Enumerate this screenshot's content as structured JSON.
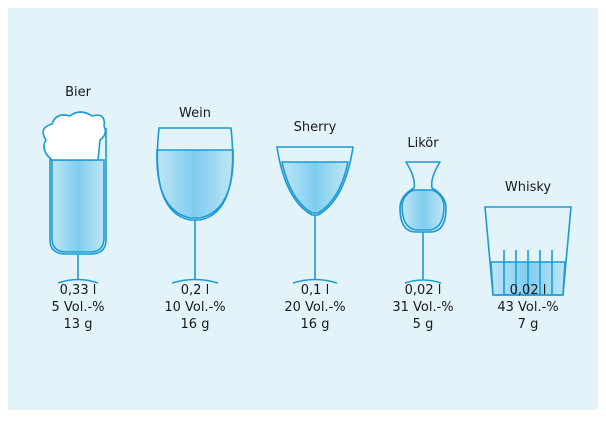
{
  "drinks": [
    {
      "name": "Bier",
      "volume": "0,33 l",
      "abv": "5 Vol.-%",
      "alcohol": "13 g"
    },
    {
      "name": "Wein",
      "volume": "0,2 l",
      "abv": "10 Vol.-%",
      "alcohol": "16 g"
    },
    {
      "name": "Sherry",
      "volume": "0,1 l",
      "abv": "20 Vol.-%",
      "alcohol": "16 g"
    },
    {
      "name": "Likör",
      "volume": "0,02 l",
      "abv": "31 Vol.-%",
      "alcohol": "5 g"
    },
    {
      "name": "Whisky",
      "volume": "0,02 l",
      "abv": "43 Vol.-%",
      "alcohol": "7 g"
    }
  ]
}
